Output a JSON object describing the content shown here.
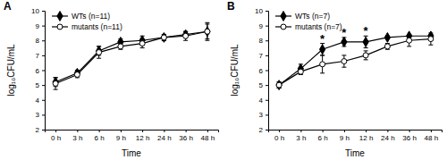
{
  "chart_data": [
    {
      "type": "line",
      "title": "A",
      "x_label": "Time",
      "y_label": "log₁₀CFU/mL",
      "categories": [
        "0 h",
        "3 h",
        "6 h",
        "9 h",
        "12 h",
        "24 h",
        "36 h",
        "48 h"
      ],
      "ylim": [
        2,
        10
      ],
      "yticks": [
        2,
        3,
        4,
        5,
        6,
        7,
        8,
        9,
        10
      ],
      "legend": "upper left",
      "series": [
        {
          "name": "WTs (n=11)",
          "color": "#000000",
          "marker": "diamond",
          "values": [
            5.2,
            5.8,
            7.3,
            7.9,
            8.0,
            8.2,
            8.4,
            8.6
          ],
          "errors": [
            0.3,
            0.2,
            0.3,
            0.2,
            0.3,
            0.2,
            0.2,
            0.5
          ]
        },
        {
          "name": "mutants (n=11)",
          "color": "#000000",
          "marker": "open-circle",
          "values": [
            5.1,
            5.7,
            7.2,
            7.6,
            7.8,
            8.2,
            8.3,
            8.6
          ],
          "errors": [
            0.4,
            0.2,
            0.4,
            0.2,
            0.3,
            0.2,
            0.3,
            0.6
          ]
        }
      ]
    },
    {
      "type": "line",
      "title": "B",
      "x_label": "Time",
      "y_label": "log₁₀CFU/mL",
      "categories": [
        "0 h",
        "3 h",
        "6 h",
        "9 h",
        "12 h",
        "24 h",
        "36 h",
        "48 h"
      ],
      "ylim": [
        2,
        10
      ],
      "yticks": [
        2,
        3,
        4,
        5,
        6,
        7,
        8,
        9,
        10
      ],
      "legend": "upper left",
      "series": [
        {
          "name": "WTs (n=7)",
          "color": "#000000",
          "marker": "diamond",
          "values": [
            5.0,
            6.1,
            7.4,
            7.9,
            7.9,
            8.2,
            8.3,
            8.3
          ],
          "errors": [
            0.2,
            0.3,
            0.4,
            0.3,
            0.4,
            0.1,
            0.1,
            0.1
          ]
        },
        {
          "name": "mutants (n=7)",
          "color": "#000000",
          "marker": "open-circle",
          "values": [
            5.0,
            5.9,
            6.4,
            6.6,
            7.0,
            7.6,
            8.0,
            8.1
          ],
          "errors": [
            0.2,
            0.2,
            0.6,
            0.4,
            0.3,
            0.2,
            0.4,
            0.4
          ]
        }
      ],
      "annotations": [
        {
          "text": "*",
          "x": "6 h"
        },
        {
          "text": "*",
          "x": "9 h"
        },
        {
          "text": "*",
          "x": "12 h"
        }
      ]
    }
  ]
}
